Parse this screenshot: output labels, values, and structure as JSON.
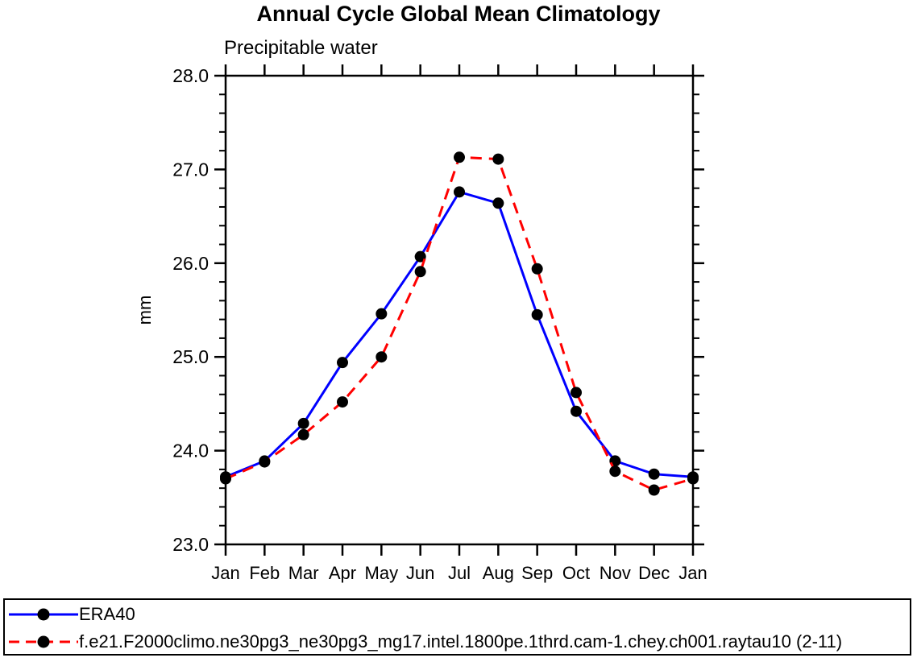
{
  "title": "Annual Cycle Global Mean Climatology",
  "chart_data": {
    "type": "line",
    "title": "Annual Cycle Global Mean Climatology",
    "subtitle": "Precipitable water",
    "ylabel": "mm",
    "xlabel": "",
    "categories": [
      "Jan",
      "Feb",
      "Mar",
      "Apr",
      "May",
      "Jun",
      "Jul",
      "Aug",
      "Sep",
      "Oct",
      "Nov",
      "Dec",
      "Jan"
    ],
    "ylim": [
      23.0,
      28.0
    ],
    "ytick_major_step": 1.0,
    "ytick_minor_step": 0.2,
    "ytick_labels": [
      "23.0",
      "24.0",
      "25.0",
      "26.0",
      "27.0",
      "28.0"
    ],
    "grid": false,
    "legend_position": "bottom-outside-box",
    "frame_color": "#000000",
    "series": [
      {
        "name": "ERA40",
        "color": "#0000ff",
        "line_style": "solid",
        "marker": "circle",
        "marker_color": "#000000",
        "values": [
          23.72,
          23.89,
          24.29,
          24.94,
          25.46,
          26.07,
          26.76,
          26.64,
          25.45,
          24.42,
          23.89,
          23.75,
          23.72
        ]
      },
      {
        "name": "f.e21.F2000climo.ne30pg3_ne30pg3_mg17.intel.1800pe.1thrd.cam-1.chey.ch001.raytau10 (2-11)",
        "color": "#ff0000",
        "line_style": "dashed",
        "marker": "circle",
        "marker_color": "#000000",
        "values": [
          23.7,
          23.88,
          24.17,
          24.52,
          25.0,
          25.91,
          27.13,
          27.11,
          25.94,
          24.62,
          23.78,
          23.58,
          23.7
        ]
      }
    ]
  }
}
